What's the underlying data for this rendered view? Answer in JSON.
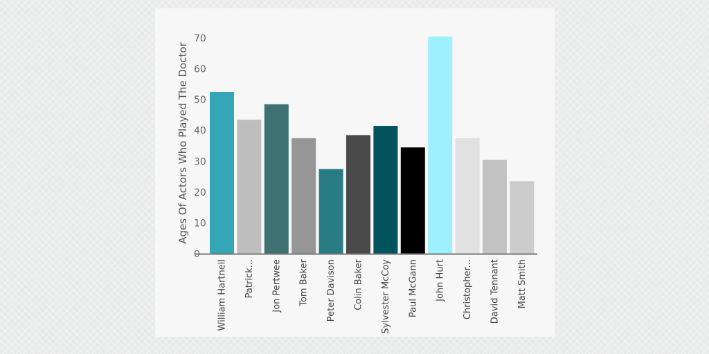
{
  "chart_data": {
    "type": "bar",
    "title": "",
    "xlabel": "",
    "ylabel": "Ages Of Actors Who Played The Doctor",
    "ylim": [
      0,
      70
    ],
    "yticks": [
      0,
      10,
      20,
      30,
      40,
      50,
      60,
      70
    ],
    "grid": false,
    "legend": "none",
    "categories": [
      "William Hartnell",
      "Patrick...",
      "Jon Pertwee",
      "Tom Baker",
      "Peter Davison",
      "Colin Baker",
      "Sylvester McCoy",
      "Paul McGann",
      "John Hurt",
      "Christopher...",
      "David Tennant",
      "Matt Smith"
    ],
    "values": [
      52.5,
      43.5,
      48.5,
      37.5,
      27.5,
      38.5,
      41.5,
      34.5,
      70.5,
      37.5,
      30.5,
      23.5
    ],
    "colors": [
      "#34a6b5",
      "#bdbdbd",
      "#3e7272",
      "#969696",
      "#2a7c84",
      "#4a4a4a",
      "#02535c",
      "#000000",
      "#9ff0fe",
      "#e1e1e1",
      "#c2c2c2",
      "#cccccc"
    ]
  }
}
